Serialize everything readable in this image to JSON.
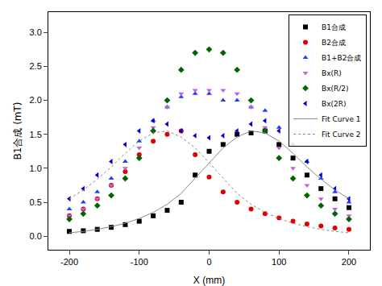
{
  "chart_data": {
    "type": "scatter",
    "xlabel": "X (mm)",
    "ylabel": "B1合成 (mT)",
    "x": [
      -200,
      -180,
      -160,
      -140,
      -120,
      -100,
      -80,
      -60,
      -40,
      -20,
      0,
      20,
      40,
      60,
      80,
      100,
      120,
      140,
      160,
      180,
      200
    ],
    "xlim": [
      -230,
      230
    ],
    "xticks": [
      -200,
      -100,
      0,
      100,
      200
    ],
    "ylim": [
      -0.2,
      3.3
    ],
    "yticks": [
      {
        "value": 0,
        "label": "0.0"
      },
      0.5,
      {
        "value": 1,
        "label": "1.0"
      },
      1.5,
      {
        "value": 2,
        "label": "2.0"
      },
      2.5,
      {
        "value": 3,
        "label": "3.0"
      }
    ],
    "grid": false,
    "legend": "top right",
    "series": [
      {
        "name": "B1合成",
        "color": "#000000",
        "type": "scatter",
        "marker": "square",
        "values": [
          0.07,
          0.08,
          0.1,
          0.13,
          0.17,
          0.22,
          0.3,
          0.38,
          0.5,
          0.9,
          1.25,
          1.35,
          1.5,
          1.52,
          1.55,
          1.35,
          1.15,
          0.9,
          0.7,
          0.55,
          0.42
        ]
      },
      {
        "name": "B2合成",
        "color": "#e00000",
        "type": "scatter",
        "marker": "circle",
        "values": [
          0.3,
          0.4,
          0.55,
          0.75,
          0.95,
          1.2,
          1.4,
          1.5,
          1.55,
          1.2,
          0.87,
          0.65,
          0.5,
          0.4,
          0.33,
          0.27,
          0.22,
          0.18,
          0.15,
          0.12,
          0.1
        ]
      },
      {
        "name": "B1+B2合成",
        "color": "#1f3fff",
        "type": "scatter",
        "marker": "triangle-up",
        "values": [
          0.4,
          0.5,
          0.65,
          0.85,
          1.1,
          1.4,
          1.7,
          1.9,
          2.05,
          2.1,
          2.1,
          2.0,
          2.0,
          1.9,
          1.85,
          1.6,
          1.35,
          1.1,
          0.85,
          0.65,
          0.5
        ]
      },
      {
        "name": "Bx(R)",
        "color": "#c060e0",
        "type": "scatter",
        "marker": "triangle-down",
        "values": [
          0.3,
          0.4,
          0.55,
          0.75,
          1.0,
          1.3,
          1.6,
          1.9,
          2.1,
          2.15,
          2.15,
          2.15,
          2.1,
          1.9,
          1.6,
          1.3,
          1.0,
          0.75,
          0.55,
          0.4,
          0.3
        ]
      },
      {
        "name": "Bx(R/2)",
        "color": "#006400",
        "type": "scatter",
        "marker": "diamond",
        "values": [
          0.25,
          0.33,
          0.45,
          0.6,
          0.85,
          1.15,
          1.55,
          2.0,
          2.45,
          2.7,
          2.75,
          2.7,
          2.45,
          2.0,
          1.55,
          1.15,
          0.85,
          0.6,
          0.45,
          0.33,
          0.25
        ]
      },
      {
        "name": "Bx(2R)",
        "color": "#0000cc",
        "type": "scatter",
        "marker": "triangle-left",
        "values": [
          0.55,
          0.7,
          0.9,
          1.1,
          1.35,
          1.55,
          1.7,
          1.65,
          1.55,
          1.48,
          1.45,
          1.48,
          1.55,
          1.65,
          1.7,
          1.55,
          1.35,
          1.1,
          0.9,
          0.7,
          0.55
        ]
      },
      {
        "name": "Fit Curve 1",
        "color": "#888888",
        "type": "line",
        "line_style": "solid",
        "values": [
          0.05,
          0.07,
          0.1,
          0.14,
          0.19,
          0.26,
          0.35,
          0.47,
          0.63,
          0.85,
          1.08,
          1.3,
          1.46,
          1.55,
          1.52,
          1.4,
          1.22,
          1.02,
          0.84,
          0.68,
          0.55
        ]
      },
      {
        "name": "Fit Curve 2",
        "color": "#888888",
        "type": "line",
        "line_style": "dot",
        "values": [
          0.55,
          0.68,
          0.84,
          1.02,
          1.22,
          1.4,
          1.52,
          1.55,
          1.46,
          1.3,
          1.08,
          0.85,
          0.63,
          0.47,
          0.35,
          0.26,
          0.19,
          0.14,
          0.1,
          0.07,
          0.05
        ]
      }
    ]
  }
}
